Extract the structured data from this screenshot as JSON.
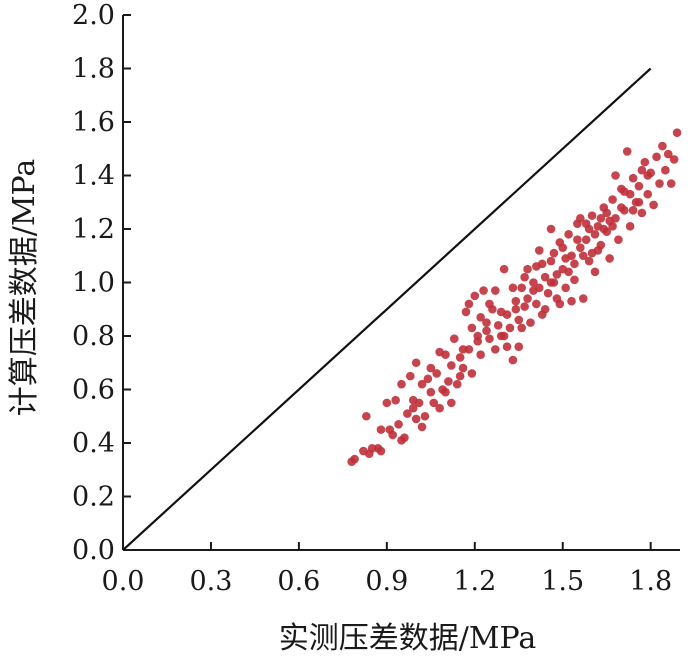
{
  "chart_data": {
    "type": "scatter",
    "title": "",
    "xlabel": "实测压差数据/MPa",
    "ylabel": "计算压差数据/MPa",
    "xlim": [
      0.0,
      1.9
    ],
    "ylim": [
      0.0,
      2.0
    ],
    "x_ticks": [
      "0.0",
      "0.3",
      "0.6",
      "0.9",
      "1.2",
      "1.5",
      "1.8"
    ],
    "y_ticks": [
      "0.0",
      "0.2",
      "0.4",
      "0.6",
      "0.8",
      "1.0",
      "1.2",
      "1.4",
      "1.6",
      "1.8",
      "2.0"
    ],
    "grid": false,
    "legend": "none",
    "colors": {
      "points": "#c0303a",
      "reference_line": "#111111",
      "axes": "#1a1a1a"
    },
    "reference_line": {
      "from": [
        0.0,
        0.0
      ],
      "to": [
        1.8,
        1.8
      ]
    },
    "series": [
      {
        "points": [
          [
            0.78,
            0.33
          ],
          [
            0.79,
            0.34
          ],
          [
            0.82,
            0.37
          ],
          [
            0.83,
            0.5
          ],
          [
            0.84,
            0.36
          ],
          [
            0.85,
            0.38
          ],
          [
            0.87,
            0.38
          ],
          [
            0.88,
            0.37
          ],
          [
            0.9,
            0.55
          ],
          [
            0.91,
            0.45
          ],
          [
            0.92,
            0.43
          ],
          [
            0.93,
            0.56
          ],
          [
            0.94,
            0.47
          ],
          [
            0.95,
            0.41
          ],
          [
            0.96,
            0.42
          ],
          [
            0.97,
            0.51
          ],
          [
            0.98,
            0.65
          ],
          [
            0.99,
            0.56
          ],
          [
            1.0,
            0.7
          ],
          [
            1.0,
            0.49
          ],
          [
            1.01,
            0.55
          ],
          [
            1.02,
            0.46
          ],
          [
            1.03,
            0.5
          ],
          [
            1.04,
            0.64
          ],
          [
            1.05,
            0.59
          ],
          [
            1.06,
            0.55
          ],
          [
            1.07,
            0.66
          ],
          [
            1.08,
            0.53
          ],
          [
            1.09,
            0.6
          ],
          [
            1.1,
            0.73
          ],
          [
            1.11,
            0.63
          ],
          [
            1.12,
            0.55
          ],
          [
            1.13,
            0.79
          ],
          [
            1.14,
            0.62
          ],
          [
            1.15,
            0.72
          ],
          [
            1.16,
            0.68
          ],
          [
            1.17,
            0.89
          ],
          [
            1.18,
            0.75
          ],
          [
            1.19,
            0.83
          ],
          [
            1.19,
            0.66
          ],
          [
            1.2,
            0.95
          ],
          [
            1.21,
            0.78
          ],
          [
            1.22,
            0.73
          ],
          [
            1.23,
            0.97
          ],
          [
            1.24,
            0.85
          ],
          [
            1.25,
            0.79
          ],
          [
            1.26,
            0.9
          ],
          [
            1.27,
            0.75
          ],
          [
            1.28,
            0.84
          ],
          [
            1.29,
            0.8
          ],
          [
            1.3,
            1.05
          ],
          [
            1.31,
            0.88
          ],
          [
            1.32,
            0.83
          ],
          [
            1.33,
            0.71
          ],
          [
            1.34,
            0.93
          ],
          [
            1.35,
            0.86
          ],
          [
            1.35,
            0.76
          ],
          [
            1.36,
            0.98
          ],
          [
            1.37,
            0.91
          ],
          [
            1.38,
            1.05
          ],
          [
            1.39,
            0.85
          ],
          [
            1.4,
            0.97
          ],
          [
            1.41,
            0.92
          ],
          [
            1.42,
            1.12
          ],
          [
            1.43,
            0.88
          ],
          [
            1.44,
            1.02
          ],
          [
            1.45,
            0.96
          ],
          [
            1.46,
            1.2
          ],
          [
            1.46,
            1.08
          ],
          [
            1.47,
            1.0
          ],
          [
            1.48,
            0.94
          ],
          [
            1.49,
            1.15
          ],
          [
            1.5,
            1.05
          ],
          [
            1.51,
            0.98
          ],
          [
            1.52,
            1.18
          ],
          [
            1.53,
            1.1
          ],
          [
            1.54,
            1.01
          ],
          [
            1.55,
            1.22
          ],
          [
            1.56,
            1.13
          ],
          [
            1.57,
            0.94
          ],
          [
            1.58,
            1.16
          ],
          [
            1.59,
            1.08
          ],
          [
            1.6,
            1.25
          ],
          [
            1.61,
            1.04
          ],
          [
            1.62,
            1.21
          ],
          [
            1.63,
            1.14
          ],
          [
            1.64,
            1.28
          ],
          [
            1.65,
            1.19
          ],
          [
            1.66,
            1.09
          ],
          [
            1.67,
            1.31
          ],
          [
            1.68,
            1.24
          ],
          [
            1.69,
            1.16
          ],
          [
            1.7,
            1.35
          ],
          [
            1.71,
            1.27
          ],
          [
            1.72,
            1.49
          ],
          [
            1.73,
            1.21
          ],
          [
            1.74,
            1.39
          ],
          [
            1.75,
            1.3
          ],
          [
            1.76,
            1.36
          ],
          [
            1.77,
            1.26
          ],
          [
            1.78,
            1.45
          ],
          [
            1.79,
            1.33
          ],
          [
            1.8,
            1.41
          ],
          [
            1.81,
            1.29
          ],
          [
            1.82,
            1.47
          ],
          [
            1.83,
            1.37
          ],
          [
            1.84,
            1.51
          ],
          [
            1.85,
            1.42
          ],
          [
            1.86,
            1.48
          ],
          [
            1.87,
            1.37
          ],
          [
            1.88,
            1.46
          ],
          [
            1.89,
            1.56
          ],
          [
            1.05,
            0.68
          ],
          [
            1.12,
            0.69
          ],
          [
            1.18,
            0.92
          ],
          [
            1.22,
            0.87
          ],
          [
            1.27,
            0.97
          ],
          [
            1.3,
            0.8
          ],
          [
            1.33,
            0.98
          ],
          [
            1.37,
            1.02
          ],
          [
            1.41,
            1.06
          ],
          [
            1.44,
            0.9
          ],
          [
            1.47,
            1.11
          ],
          [
            1.5,
            1.13
          ],
          [
            1.53,
            0.93
          ],
          [
            1.56,
            1.24
          ],
          [
            1.59,
            1.2
          ],
          [
            1.62,
            1.12
          ],
          [
            1.65,
            1.26
          ],
          [
            1.68,
            1.4
          ],
          [
            1.71,
            1.34
          ],
          [
            1.74,
            1.27
          ],
          [
            1.77,
            1.42
          ],
          [
            0.95,
            0.62
          ],
          [
            1.02,
            0.62
          ],
          [
            1.08,
            0.74
          ],
          [
            1.15,
            0.65
          ],
          [
            1.21,
            0.8
          ],
          [
            1.25,
            0.92
          ],
          [
            1.31,
            0.76
          ],
          [
            1.36,
            0.83
          ],
          [
            1.4,
            1.0
          ],
          [
            1.43,
            1.07
          ],
          [
            1.46,
            1.0
          ],
          [
            1.49,
            0.92
          ],
          [
            1.52,
            1.04
          ],
          [
            1.55,
            1.16
          ],
          [
            1.58,
            1.22
          ],
          [
            1.61,
            1.18
          ],
          [
            1.64,
            1.2
          ],
          [
            1.67,
            1.21
          ],
          [
            1.7,
            1.28
          ],
          [
            1.73,
            1.33
          ],
          [
            1.76,
            1.3
          ],
          [
            1.79,
            1.4
          ],
          [
            0.88,
            0.45
          ],
          [
            0.99,
            0.53
          ],
          [
            1.1,
            0.59
          ],
          [
            1.16,
            0.75
          ],
          [
            1.24,
            0.82
          ],
          [
            1.29,
            0.89
          ],
          [
            1.34,
            0.9
          ],
          [
            1.38,
            0.94
          ],
          [
            1.42,
            0.98
          ],
          [
            1.48,
            1.03
          ],
          [
            1.51,
            1.09
          ],
          [
            1.54,
            1.07
          ],
          [
            1.57,
            1.1
          ],
          [
            1.6,
            1.11
          ],
          [
            1.63,
            1.24
          ],
          [
            1.66,
            1.23
          ]
        ]
      }
    ]
  }
}
